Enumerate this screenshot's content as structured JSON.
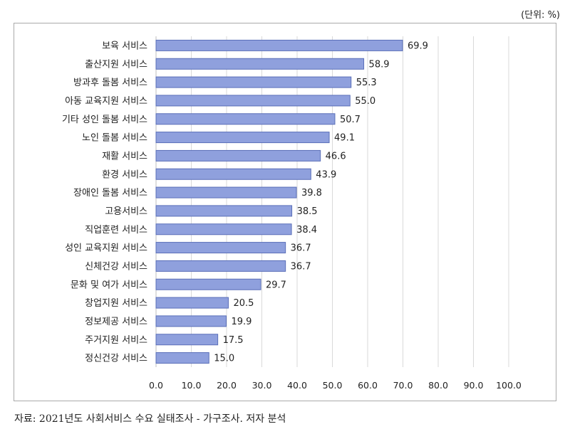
{
  "unit_note": "(단위: %)",
  "source_note": "자료: 2021년도 사회서비스 수요 실태조사 - 가구조사. 저자 분석",
  "chart_data": {
    "type": "bar",
    "orientation": "horizontal",
    "categories": [
      "보육 서비스",
      "출산지원 서비스",
      "방과후 돌봄 서비스",
      "아동 교육지원 서비스",
      "기타 성인 돌봄 서비스",
      "노인 돌봄 서비스",
      "재활 서비스",
      "환경 서비스",
      "장애인 돌봄 서비스",
      "고용서비스",
      "직업훈련 서비스",
      "성인 교육지원 서비스",
      "신체건강 서비스",
      "문화 및 여가 서비스",
      "창업지원 서비스",
      "정보제공 서비스",
      "주거지원 서비스",
      "정신건강 서비스"
    ],
    "values": [
      69.9,
      58.9,
      55.3,
      55.0,
      50.7,
      49.1,
      46.6,
      43.9,
      39.8,
      38.5,
      38.4,
      36.7,
      36.7,
      29.7,
      20.5,
      19.9,
      17.5,
      15.0
    ],
    "value_labels": [
      "69.9",
      "58.9",
      "55.3",
      "55.0",
      "50.7",
      "49.1",
      "46.6",
      "43.9",
      "39.8",
      "38.5",
      "38.4",
      "36.7",
      "36.7",
      "29.7",
      "20.5",
      "19.9",
      "17.5",
      "15.0"
    ],
    "x_ticks": [
      "0.0",
      "10.0",
      "20.0",
      "30.0",
      "40.0",
      "50.0",
      "60.0",
      "70.0",
      "80.0",
      "90.0",
      "100.0"
    ],
    "xlim": [
      0,
      100
    ],
    "grid": "vertical",
    "bar_color": "#8fa0dd",
    "bar_border_color": "#5a6fb8",
    "grid_color": "#d9d9d9"
  }
}
